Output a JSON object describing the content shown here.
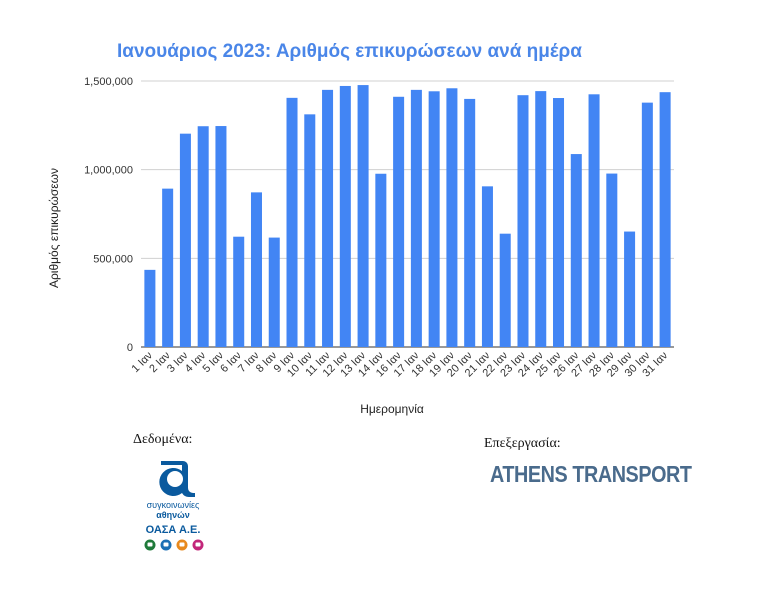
{
  "chart_data": {
    "type": "bar",
    "title": "Ιανουάριος 2023: Αριθμός επικυρώσεων ανά ημέρα",
    "xlabel": "Ημερομηνία",
    "ylabel": "Αριθμός επικυρώσεων",
    "ylim": [
      0,
      1500000
    ],
    "yticks": [
      0,
      500000,
      1000000,
      1500000
    ],
    "ytick_labels": [
      "0",
      "500,000",
      "1,000,000",
      "1,500,000"
    ],
    "grid": true,
    "legend": "none",
    "bar_color": "#4285f4",
    "categories": [
      "1 Ιαν",
      "2 Ιαν",
      "3 Ιαν",
      "4 Ιαν",
      "5 Ιαν",
      "6 Ιαν",
      "7 Ιαν",
      "8 Ιαν",
      "9 Ιαν",
      "10 Ιαν",
      "11 Ιαν",
      "12 Ιαν",
      "13 Ιαν",
      "14 Ιαν",
      "16 Ιαν",
      "17 Ιαν",
      "18 Ιαν",
      "19 Ιαν",
      "20 Ιαν",
      "21 Ιαν",
      "22 Ιαν",
      "23 Ιαν",
      "24 Ιαν",
      "25 Ιαν",
      "26 Ιαν",
      "27 Ιαν",
      "28 Ιαν",
      "29 Ιαν",
      "30 Ιαν",
      "31 Ιαν"
    ],
    "values": [
      435000,
      893000,
      1203000,
      1245000,
      1246000,
      622000,
      872000,
      617000,
      1405000,
      1312000,
      1450000,
      1472000,
      1477000,
      977000,
      1411000,
      1450000,
      1442000,
      1459000,
      1399000,
      906000,
      639000,
      1420000,
      1443000,
      1404000,
      1088000,
      1425000,
      978000,
      651000,
      1378000,
      1437000
    ]
  },
  "credits": {
    "data_label": "Δεδομένα:",
    "processing_label": "Επεξεργασία:",
    "oasa_line1": "συγκοινωνίες",
    "oasa_line2": "αθηνών",
    "oasa_name": "ΟΑΣΑ Α.Ε.",
    "athens_transport": "ATHENS TRANSPORT"
  },
  "colors": {
    "oasa_blue": "#0a5a9e",
    "oasa_icons": [
      "#1f7a3a",
      "#1a6fb5",
      "#e8891d",
      "#c2267a"
    ]
  }
}
